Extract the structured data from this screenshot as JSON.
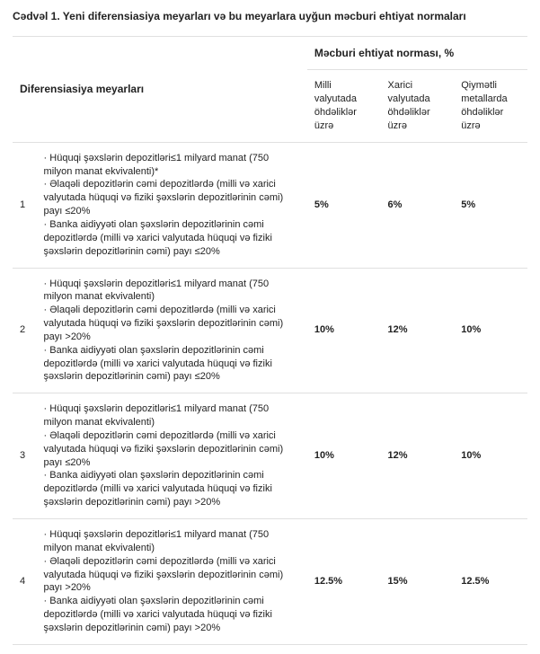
{
  "caption": "Cədvəl 1. Yeni diferensiasiya meyarları və bu meyarlara uyğun məcburi ehtiyat normaları",
  "headers": {
    "criteria": "Diferensiasiya meyarları",
    "group": "Məcburi ehtiyat norması, %",
    "col_national": "Milli valyutada öhdəliklər üzrə",
    "col_foreign": "Xarici valyutada öhdəliklər üzrə",
    "col_metals": "Qiymətli metallarda öhdəliklər üzrə"
  },
  "rows": [
    {
      "idx": "1",
      "criteria": "· Hüquqi şəxslərin depozitləri≤1 milyard manat (750 milyon manat ekvivalenti)*\n· Əlaqəli depozitlərin cəmi depozitlərdə (milli və xarici valyutada hüquqi və fiziki şəxslərin depozitlərinin cəmi) payı ≤20%\n· Banka aidiyyəti olan şəxslərin depozitlərinin cəmi depozitlərdə (milli və xarici valyutada hüquqi və fiziki şəxslərin depozitlərinin cəmi) payı ≤20%",
      "national": "5%",
      "foreign": "6%",
      "metals": "5%"
    },
    {
      "idx": "2",
      "criteria": "· Hüquqi şəxslərin depozitləri≤1 milyard manat (750 milyon manat ekvivalenti)\n· Əlaqəli depozitlərin cəmi depozitlərdə (milli və xarici valyutada hüquqi və fiziki şəxslərin depozitlərinin cəmi) payı >20%\n· Banka aidiyyəti olan şəxslərin depozitlərinin cəmi depozitlərdə (milli və xarici valyutada hüquqi və fiziki şəxslərin depozitlərinin cəmi) payı ≤20%",
      "national": "10%",
      "foreign": "12%",
      "metals": "10%"
    },
    {
      "idx": "3",
      "criteria": "· Hüquqi şəxslərin depozitləri≤1 milyard manat (750 milyon manat ekvivalenti)\n· Əlaqəli depozitlərin cəmi depozitlərdə (milli və xarici valyutada hüquqi və fiziki şəxslərin depozitlərinin cəmi) payı ≤20%\n· Banka aidiyyəti olan şəxslərin depozitlərinin cəmi depozitlərdə (milli və xarici valyutada hüquqi və fiziki şəxslərin depozitlərinin cəmi) payı >20%",
      "national": "10%",
      "foreign": "12%",
      "metals": "10%"
    },
    {
      "idx": "4",
      "criteria": "· Hüquqi şəxslərin depozitləri≤1 milyard manat (750 milyon manat ekvivalenti)\n· Əlaqəli depozitlərin cəmi depozitlərdə (milli və xarici valyutada hüquqi və fiziki şəxslərin depozitlərinin cəmi) payı >20%\n· Banka aidiyyəti olan şəxslərin depozitlərinin cəmi depozitlərdə (milli və xarici valyutada hüquqi və fiziki şəxslərin depozitlərinin cəmi) payı >20%",
      "national": "12.5%",
      "foreign": "15%",
      "metals": "12.5%"
    }
  ]
}
